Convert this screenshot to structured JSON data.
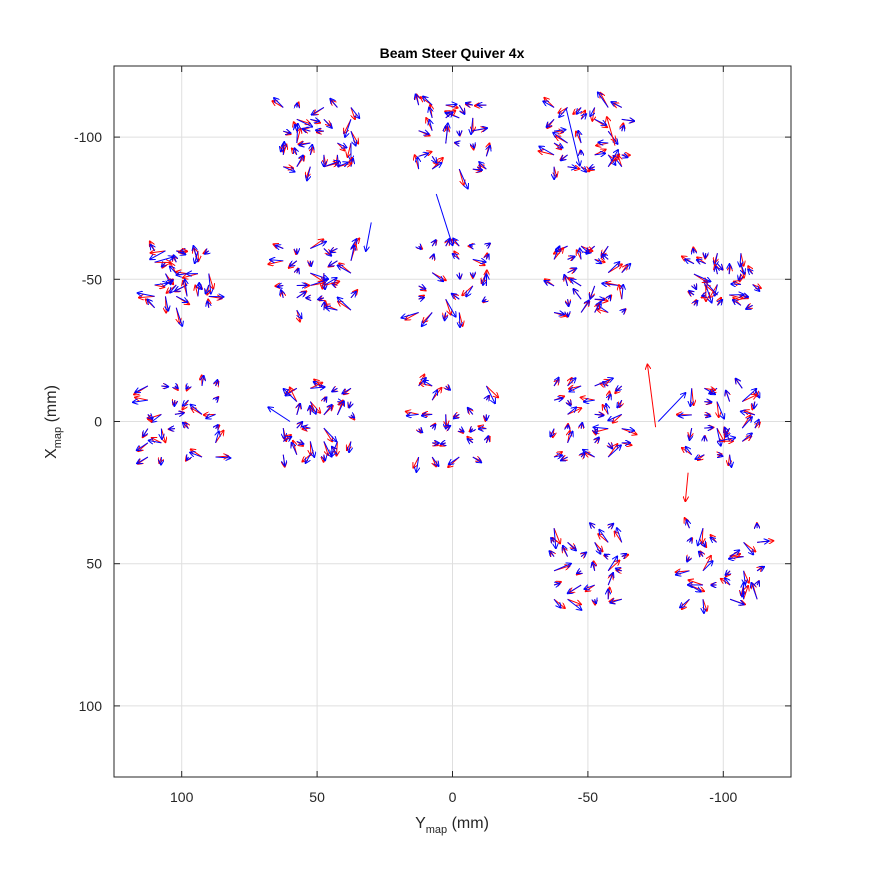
{
  "chart_data": {
    "type": "quiver",
    "title": "Beam Steer Quiver 4x",
    "xlabel": {
      "main": "Y",
      "sub": "map",
      "unit": " (mm)"
    },
    "ylabel": {
      "main": "X",
      "sub": "map",
      "unit": " (mm)"
    },
    "xlim": [
      125,
      -125
    ],
    "ylim": [
      -125,
      125
    ],
    "x_reversed": true,
    "y_reversed": true,
    "xticks": [
      100,
      50,
      0,
      -50,
      -100
    ],
    "xtick_labels": [
      "100",
      "50",
      "0",
      "-50",
      "-100"
    ],
    "yticks": [
      -100,
      -50,
      0,
      50,
      100
    ],
    "ytick_labels": [
      "-100",
      "-50",
      "0",
      "50",
      "100"
    ],
    "grid": true,
    "colors": {
      "series_a": "#ff0000",
      "series_b": "#0000ff",
      "grid": "#dfdfdf",
      "axis": "#262626"
    },
    "series": [
      {
        "color": "#ff0000"
      },
      {
        "color": "#0000ff"
      }
    ],
    "modules": [
      {
        "cx": 50,
        "cy": -100,
        "w": 30,
        "h": 25
      },
      {
        "cx": 0,
        "cy": -100,
        "w": 30,
        "h": 27
      },
      {
        "cx": -50,
        "cy": -100,
        "w": 30,
        "h": 25
      },
      {
        "cx": 100,
        "cy": -50,
        "w": 24,
        "h": 24
      },
      {
        "cx": 50,
        "cy": -50,
        "w": 30,
        "h": 26
      },
      {
        "cx": 0,
        "cy": -50,
        "w": 30,
        "h": 28
      },
      {
        "cx": -50,
        "cy": -50,
        "w": 30,
        "h": 28
      },
      {
        "cx": -100,
        "cy": -50,
        "w": 26,
        "h": 22
      },
      {
        "cx": 100,
        "cy": 0,
        "w": 30,
        "h": 30
      },
      {
        "cx": 50,
        "cy": 0,
        "w": 30,
        "h": 28
      },
      {
        "cx": 0,
        "cy": 0,
        "w": 30,
        "h": 30
      },
      {
        "cx": -50,
        "cy": 0,
        "w": 30,
        "h": 30
      },
      {
        "cx": -100,
        "cy": 0,
        "w": 28,
        "h": 28
      },
      {
        "cx": -50,
        "cy": 50,
        "w": 30,
        "h": 30
      },
      {
        "cx": -100,
        "cy": 50,
        "w": 30,
        "h": 30
      }
    ],
    "highlight_arrows": [
      {
        "color": "#0000ff",
        "x": 30,
        "y": -70,
        "u": 2,
        "v": 10
      },
      {
        "color": "#0000ff",
        "x": 6,
        "y": -80,
        "u": -6,
        "v": 18
      },
      {
        "color": "#0000ff",
        "x": -42,
        "y": -110,
        "u": -5,
        "v": 20
      },
      {
        "color": "#ff0000",
        "x": -60,
        "y": -97,
        "u": 3,
        "v": -10
      },
      {
        "color": "#0000ff",
        "x": 60,
        "y": 0,
        "u": 8,
        "v": -5
      },
      {
        "color": "#ff0000",
        "x": -75,
        "y": 2,
        "u": 3,
        "v": -22
      },
      {
        "color": "#0000ff",
        "x": -76,
        "y": 0,
        "u": -10,
        "v": -10
      },
      {
        "color": "#ff0000",
        "x": -87,
        "y": 18,
        "u": 1,
        "v": 10
      }
    ]
  }
}
